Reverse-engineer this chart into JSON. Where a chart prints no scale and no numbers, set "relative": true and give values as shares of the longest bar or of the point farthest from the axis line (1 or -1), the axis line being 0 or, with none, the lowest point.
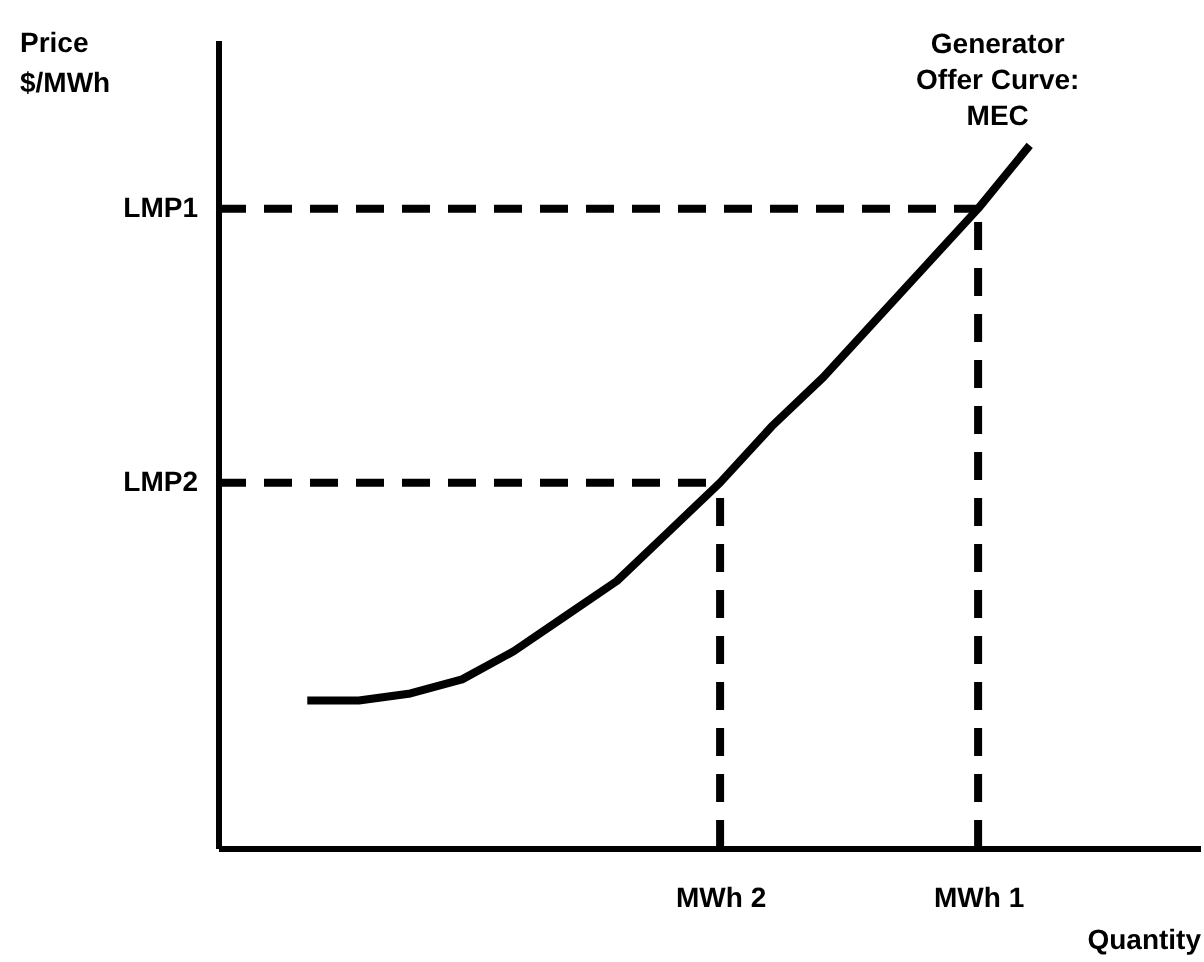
{
  "chart_data": {
    "type": "line",
    "relative": true,
    "xlabel": "Quantity",
    "annotations": [
      "Price $/MWh"
    ],
    "grid": false,
    "line_style": "solid",
    "marker": "none",
    "categories": [
      null,
      null,
      null,
      null,
      null,
      null,
      null,
      null,
      "MWh 2",
      null,
      null,
      null,
      null,
      "MWh 1",
      null
    ],
    "series": [
      {
        "name": "Generator Offer Curve: MEC",
        "color": "#000000",
        "values": [
          0.21,
          0.21,
          0.22,
          0.24,
          0.28,
          0.33,
          0.38,
          0.45,
          0.52,
          0.6,
          0.67,
          0.75,
          0.83,
          0.91,
          1
        ]
      }
    ],
    "ref_lines": [
      {
        "axis": "y",
        "value": 0.91,
        "label": "LMP1",
        "line_style": "dashed",
        "color": "#000000"
      },
      {
        "axis": "y",
        "value": 0.52,
        "label": "LMP2",
        "line_style": "dashed",
        "color": "#000000"
      },
      {
        "axis": "x",
        "value": "MWh 2",
        "line_style": "dashed",
        "color": "#000000"
      },
      {
        "axis": "x",
        "value": "MWh 1",
        "line_style": "dashed",
        "color": "#000000"
      }
    ]
  }
}
